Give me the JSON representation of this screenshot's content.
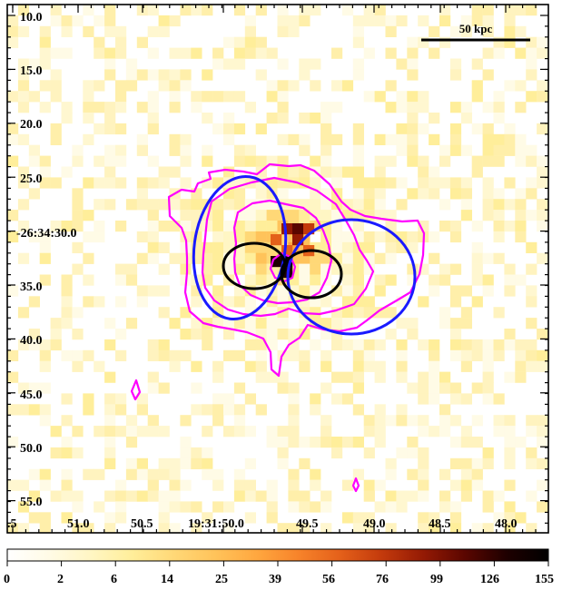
{
  "image": {
    "dec_tick_labels": [
      "10.0",
      "15.0",
      "20.0",
      "25.0",
      "-26:34:30.0",
      "35.0",
      "40.0",
      "45.0",
      "50.0",
      "55.0"
    ],
    "ra_tick_labels": [
      ".5",
      "51.0",
      "50.5",
      "19:31:50.0",
      "49.5",
      "49.0",
      "48.5",
      "48.0"
    ],
    "scale_bar_label": "50 kpc",
    "colorbar_labels": [
      "0",
      "2",
      "6",
      "14",
      "25",
      "39",
      "56",
      "76",
      "99",
      "126",
      "155"
    ],
    "colormap": [
      "#ffffff",
      "#fffbe6",
      "#fff6c4",
      "#ffee9a",
      "#ffd877",
      "#ffc35a",
      "#ffa73f",
      "#f7832a",
      "#e4601a",
      "#c33a0c",
      "#941a04",
      "#5a0600",
      "#1e0000",
      "#000000"
    ],
    "contour_color": "#ff00ff",
    "ellipse_colors": {
      "outer": "#1a1aff",
      "inner": "#000000"
    }
  }
}
